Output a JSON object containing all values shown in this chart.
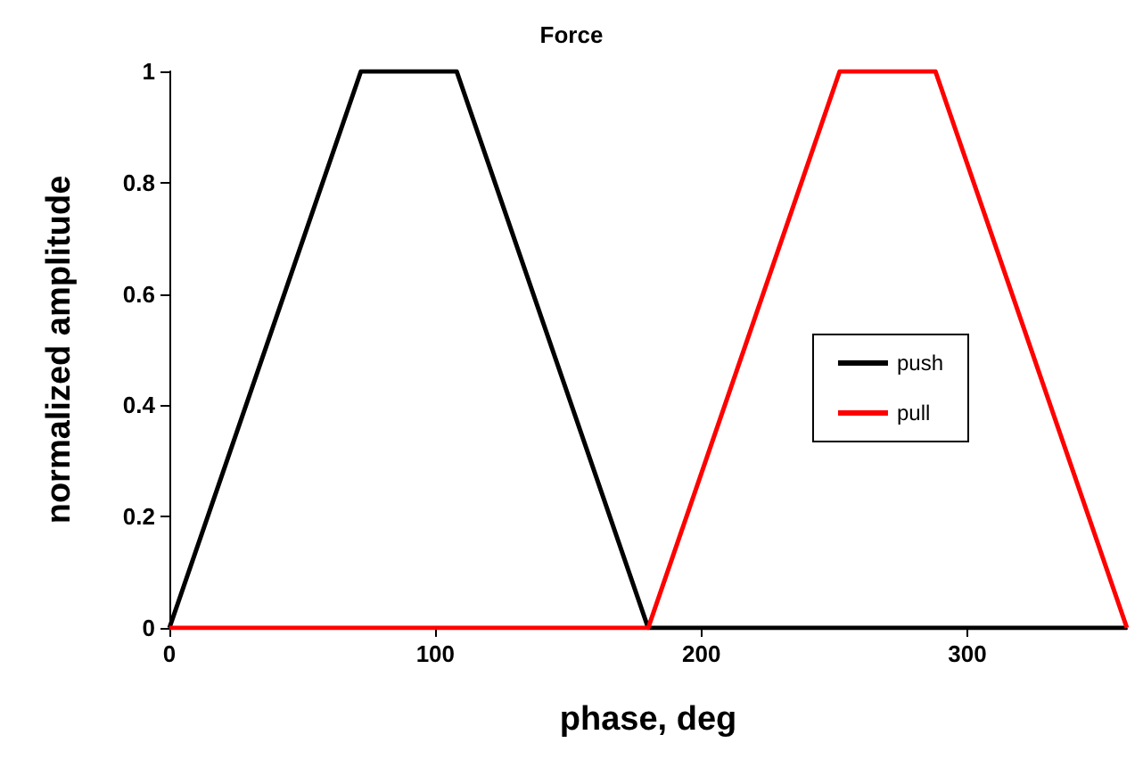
{
  "chart_data": {
    "type": "line",
    "title": "Force",
    "xlabel": "phase, deg",
    "ylabel": "normalized amplitude",
    "series": [
      {
        "name": "push",
        "color": "#000000",
        "x": [
          0,
          72,
          108,
          180,
          360
        ],
        "values": [
          0,
          1,
          1,
          0,
          0
        ]
      },
      {
        "name": "pull",
        "color": "#ff0000",
        "x": [
          0,
          180,
          252,
          288,
          360
        ],
        "values": [
          0,
          0,
          1,
          1,
          0
        ]
      }
    ],
    "xlim": [
      0,
      360
    ],
    "xticks": [
      0,
      100,
      200,
      300
    ],
    "ylim": [
      0,
      1
    ],
    "yticks": [
      0,
      0.2,
      0.4,
      0.6,
      0.8,
      1
    ],
    "grid": false,
    "legend": "right",
    "marker": "none",
    "line_style": "solid"
  }
}
